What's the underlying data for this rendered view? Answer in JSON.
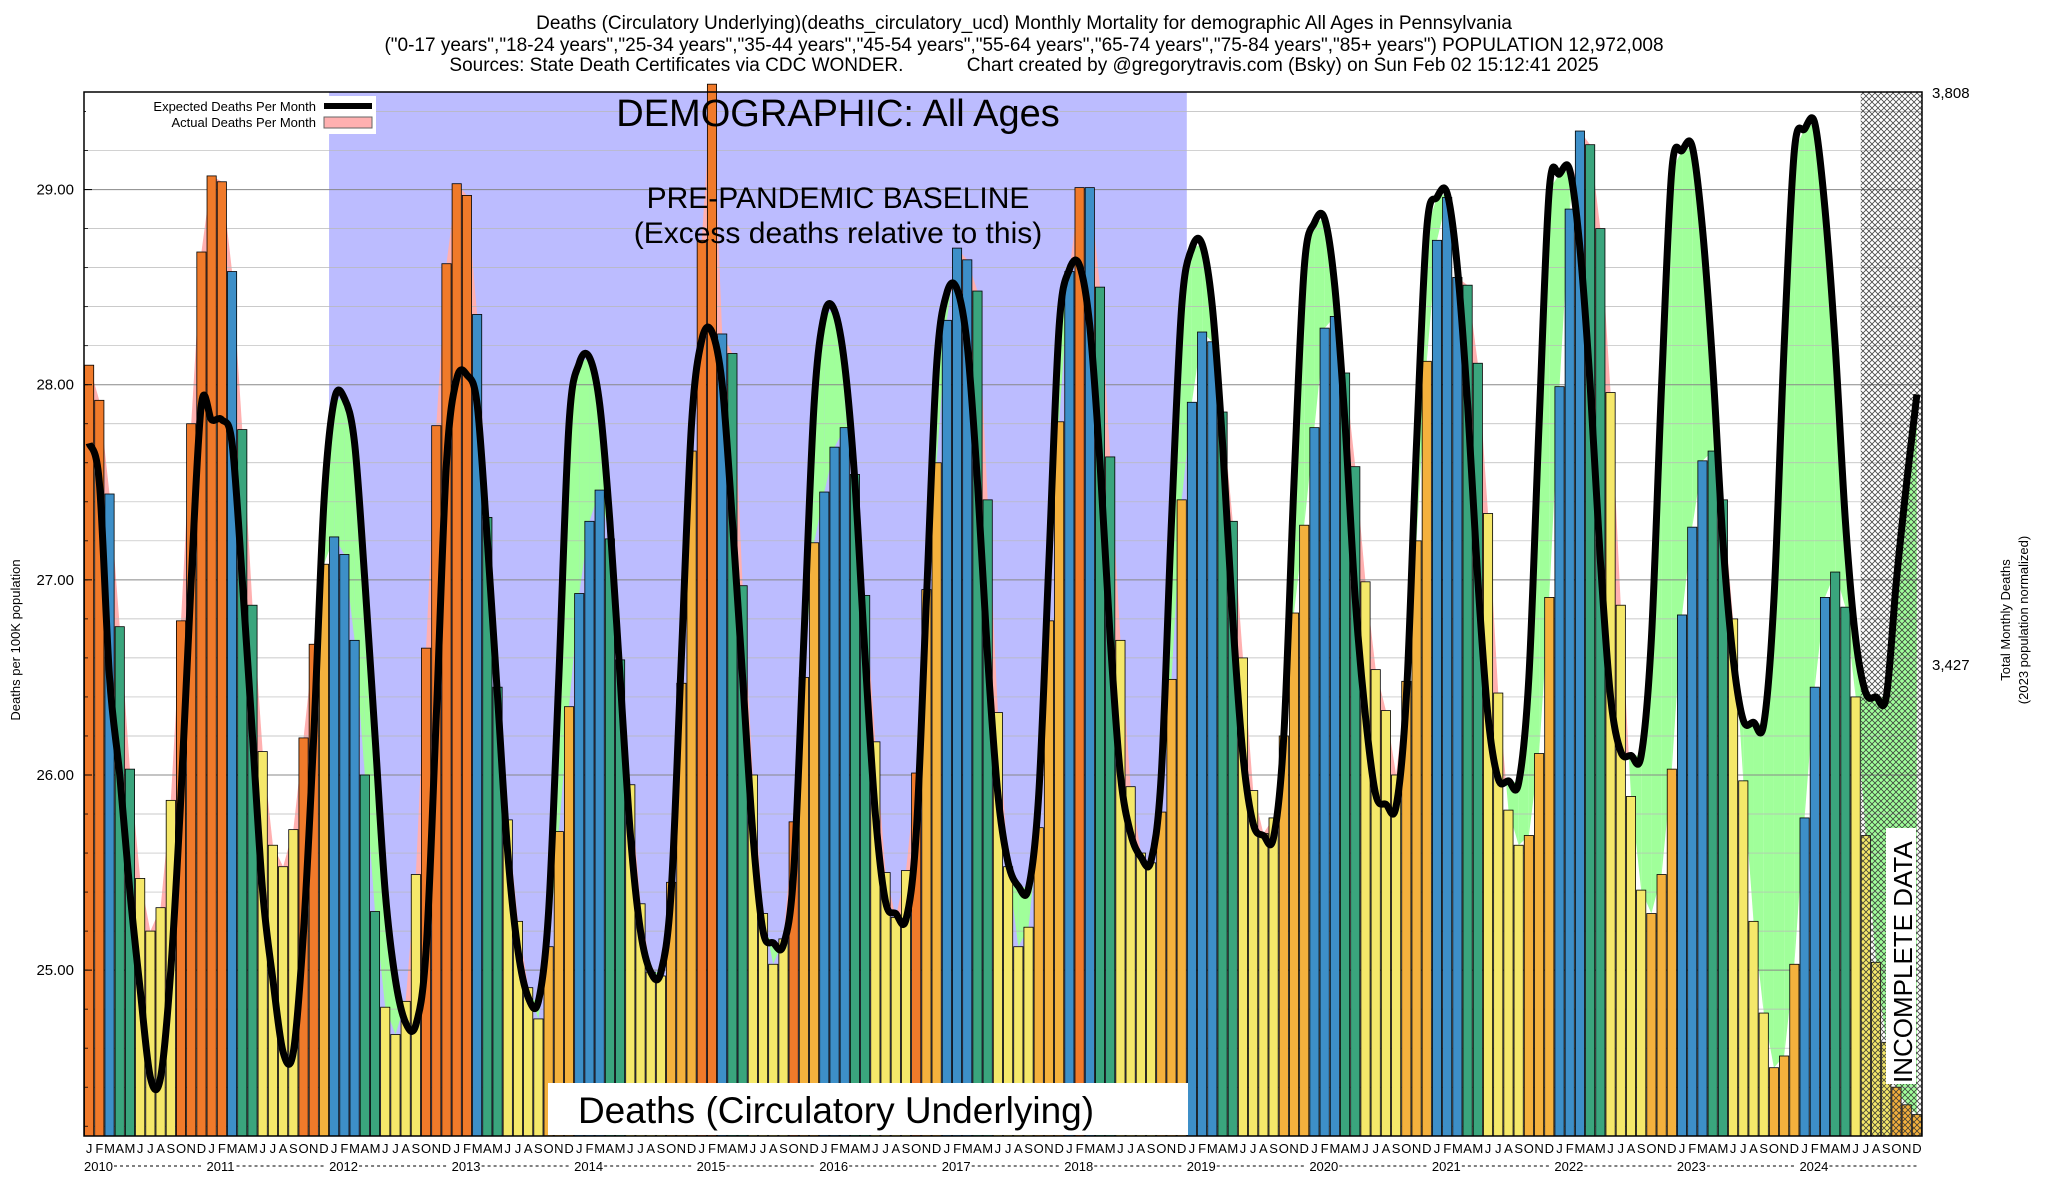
{
  "header": {
    "line1": "Deaths (Circulatory Underlying)(deaths_circulatory_ucd) Monthly Mortality for demographic All Ages in Pennsylvania",
    "line2": "(\"0-17 years\",\"18-24 years\",\"25-34 years\",\"35-44 years\",\"45-54 years\",\"55-64 years\",\"65-74 years\",\"75-84 years\",\"85+ years\") POPULATION 12,972,008",
    "line3": "Sources: State Death Certificates via CDC WONDER.            Chart created by @gregorytravis.com (Bsky) on Sun Feb 02 15:12:41 2025"
  },
  "annotations": {
    "demographic": "DEMOGRAPHIC: All Ages",
    "baseline_line1": "PRE-PANDEMIC BASELINE",
    "baseline_line2": "(Excess deaths relative to this)",
    "bottom_label": "Deaths (Circulatory Underlying)",
    "incomplete": "INCOMPLETE DATA"
  },
  "legend": {
    "expected": "Expected Deaths Per Month",
    "actual": "Actual Deaths Per Month"
  },
  "axes": {
    "ylabel_left": "Deaths per 100K population",
    "ylabel_right_1": "Total Monthly Deaths",
    "ylabel_right_2": "(2023 population normalized)",
    "right_ticks": [
      "3,808",
      "3,427"
    ],
    "y_ticks": [
      "25.00",
      "26.00",
      "27.00",
      "28.00",
      "29.00"
    ]
  },
  "colors": {
    "baseline_region": "#bcbcff",
    "excess_fill": "#a0ff9a",
    "actual_fill": "#ffb0b0",
    "expected_line": "#000000",
    "winter_bar": "#3d8fc8",
    "spring_bar": "#3aa57d",
    "summer_bar": "#f5e86a",
    "autumn_bar": "#f4b13d",
    "excess_bar": "#f07a2a"
  },
  "chart_data": {
    "type": "bar",
    "title": "Deaths (Circulatory Underlying)(deaths_circulatory_ucd) Monthly Mortality for demographic All Ages in Pennsylvania",
    "xlabel": "",
    "ylabel": "Deaths per 100K population",
    "ylim": [
      24.15,
      29.5
    ],
    "grid": true,
    "legend_position": "top-left",
    "month_letters": [
      "J",
      "F",
      "M",
      "A",
      "M",
      "J",
      "J",
      "A",
      "S",
      "O",
      "N",
      "D"
    ],
    "years": [
      "2010",
      "2011",
      "2012",
      "2013",
      "2014",
      "2015",
      "2016",
      "2017",
      "2018",
      "2019",
      "2020",
      "2021",
      "2022",
      "2023",
      "2024"
    ],
    "baseline_years": [
      "2012",
      "2013",
      "2014",
      "2015",
      "2016",
      "2017",
      "2018"
    ],
    "incomplete_from_month": "2024-07",
    "series": [
      {
        "name": "Actual Deaths Per Month",
        "values": [
          28.1,
          27.92,
          27.44,
          26.76,
          26.03,
          25.47,
          25.2,
          25.32,
          25.87,
          26.79,
          27.8,
          28.68,
          29.07,
          29.04,
          28.58,
          27.77,
          26.87,
          26.12,
          25.64,
          25.53,
          25.72,
          26.19,
          26.67,
          27.08,
          27.22,
          27.13,
          26.69,
          26.0,
          25.3,
          24.81,
          24.67,
          24.84,
          25.49,
          26.65,
          27.79,
          28.62,
          29.03,
          28.97,
          28.36,
          27.32,
          26.45,
          25.77,
          25.25,
          24.91,
          24.75,
          25.12,
          25.71,
          26.35,
          26.93,
          27.3,
          27.46,
          27.21,
          26.59,
          25.95,
          25.34,
          24.99,
          24.97,
          25.45,
          26.47,
          27.66,
          28.74,
          29.54,
          28.26,
          28.16,
          26.97,
          26.0,
          25.29,
          25.03,
          25.16,
          25.76,
          26.5,
          27.19,
          27.45,
          27.68,
          27.78,
          27.54,
          26.92,
          26.17,
          25.5,
          25.27,
          25.51,
          26.01,
          26.95,
          27.6,
          28.33,
          28.7,
          28.64,
          28.48,
          27.41,
          26.32,
          25.53,
          25.12,
          25.22,
          25.73,
          26.79,
          27.81,
          28.58,
          29.01,
          29.01,
          28.5,
          27.63,
          26.69,
          25.94,
          25.6,
          25.55,
          25.81,
          26.49,
          27.41,
          27.91,
          28.27,
          28.22,
          27.86,
          27.3,
          26.6,
          25.92,
          25.7,
          25.78,
          26.2,
          26.83,
          27.28,
          27.78,
          28.29,
          28.35,
          28.06,
          27.58,
          26.99,
          26.54,
          26.33,
          26.0,
          26.48,
          27.2,
          28.12,
          28.74,
          28.96,
          28.55,
          28.51,
          28.11,
          27.34,
          26.42,
          25.82,
          25.64,
          25.69,
          26.11,
          26.91,
          27.99,
          28.9,
          29.3,
          29.23,
          28.8,
          27.96,
          26.87,
          25.89,
          25.41,
          25.29,
          25.49,
          26.03,
          26.82,
          27.27,
          27.61,
          27.66,
          27.41,
          26.8,
          25.97,
          25.25,
          24.78,
          24.5,
          24.56,
          25.03,
          25.78,
          26.45,
          26.91,
          27.04,
          26.86,
          26.4,
          25.69,
          25.04,
          24.63,
          24.4,
          24.31,
          24.26
        ]
      },
      {
        "name": "Expected Deaths Per Month",
        "values": [
          27.7,
          27.5,
          26.5,
          26.0,
          25.4,
          24.9,
          24.45,
          24.45,
          25.0,
          25.9,
          27.0,
          27.9,
          27.82,
          27.82,
          27.7,
          27.0,
          26.2,
          25.4,
          24.95,
          24.58,
          24.58,
          25.2,
          26.2,
          27.4,
          27.92,
          27.93,
          27.7,
          27.0,
          26.2,
          25.4,
          24.95,
          24.73,
          24.72,
          25.1,
          26.3,
          27.6,
          28.03,
          28.05,
          27.9,
          27.2,
          26.4,
          25.6,
          25.1,
          24.86,
          24.84,
          25.3,
          26.5,
          27.8,
          28.11,
          28.14,
          27.9,
          27.3,
          26.5,
          25.7,
          25.2,
          24.99,
          24.99,
          25.4,
          26.6,
          27.8,
          28.23,
          28.27,
          28.0,
          27.3,
          26.5,
          25.7,
          25.2,
          25.14,
          25.13,
          25.5,
          26.7,
          27.9,
          28.36,
          28.38,
          28.1,
          27.5,
          26.6,
          25.8,
          25.35,
          25.29,
          25.26,
          25.7,
          26.9,
          28.1,
          28.47,
          28.49,
          28.2,
          27.5,
          26.6,
          25.9,
          25.55,
          25.43,
          25.42,
          25.9,
          27.1,
          28.3,
          28.59,
          28.61,
          28.3,
          27.6,
          26.7,
          26.0,
          25.7,
          25.58,
          25.56,
          26.0,
          27.3,
          28.4,
          28.7,
          28.72,
          28.4,
          27.7,
          26.8,
          26.1,
          25.75,
          25.69,
          25.68,
          26.2,
          27.5,
          28.6,
          28.83,
          28.85,
          28.5,
          27.8,
          26.9,
          26.3,
          25.9,
          25.85,
          25.84,
          26.4,
          27.7,
          28.8,
          28.96,
          28.98,
          28.6,
          27.9,
          27.0,
          26.3,
          25.98,
          25.97,
          25.96,
          26.5,
          27.8,
          29.0,
          29.08,
          29.1,
          28.7,
          28.0,
          27.1,
          26.4,
          26.12,
          26.1,
          26.1,
          26.7,
          28.0,
          29.1,
          29.2,
          29.22,
          28.8,
          28.1,
          27.2,
          26.6,
          26.28,
          26.27,
          26.26,
          26.9,
          28.2,
          29.2,
          29.31,
          29.34,
          28.9,
          28.2,
          27.3,
          26.7,
          26.42,
          26.4,
          26.4,
          27.0,
          27.5,
          27.95
        ]
      }
    ]
  }
}
